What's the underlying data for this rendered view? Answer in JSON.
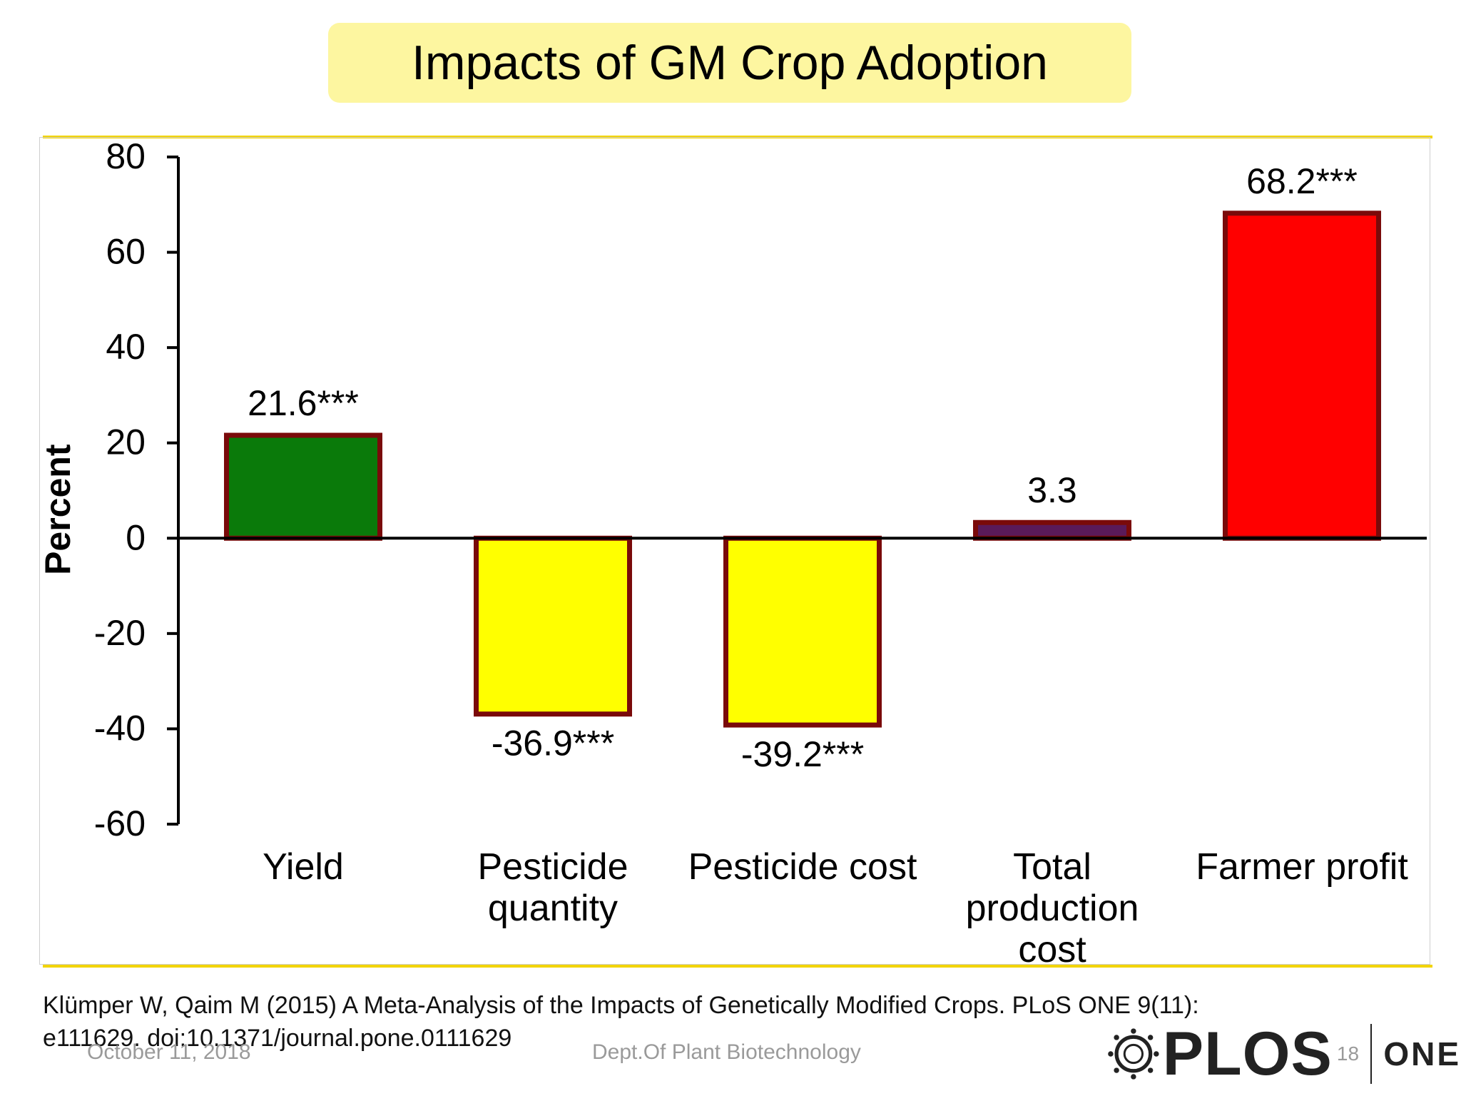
{
  "slide": {
    "title": "Impacts of GM Crop Adoption",
    "citation_line1": "Klümper W, Qaim M (2015) A Meta-Analysis of the Impacts of Genetically Modified Crops. PLoS ONE 9(11):",
    "citation_line2": "e111629. doi:10.1371/journal.pone.0111629",
    "footer_date": "October 11, 2018",
    "footer_dept": "Dept.Of Plant Biotechnology",
    "page_number": "18",
    "logo_word": "PLOS",
    "logo_suffix": "ONE",
    "accent_color": "#f2d400",
    "title_bg_color": "#fdf6a0"
  },
  "chart_data": {
    "type": "bar",
    "title": "",
    "xlabel": "",
    "ylabel": "Percent",
    "ylim": [
      -60,
      80
    ],
    "yticks": [
      80,
      60,
      40,
      20,
      0,
      -20,
      -40,
      -60
    ],
    "categories": [
      "Yield",
      "Pesticide quantity",
      "Pesticide cost",
      "Total production cost",
      "Farmer profit"
    ],
    "category_lines": [
      [
        "Yield"
      ],
      [
        "Pesticide",
        "quantity"
      ],
      [
        "Pesticide cost"
      ],
      [
        "Total",
        "production",
        "cost"
      ],
      [
        "Farmer profit"
      ]
    ],
    "values": [
      21.6,
      -36.9,
      -39.2,
      3.3,
      68.2
    ],
    "data_labels": [
      "21.6***",
      "-36.9***",
      "-39.2***",
      "3.3",
      "68.2***"
    ],
    "bar_colors": [
      "#0a7a0a",
      "#ffff00",
      "#ffff00",
      "#5a1a5a",
      "#ff0000"
    ],
    "bar_border_color": "#7a0a0a",
    "grid": false,
    "legend": "none"
  }
}
